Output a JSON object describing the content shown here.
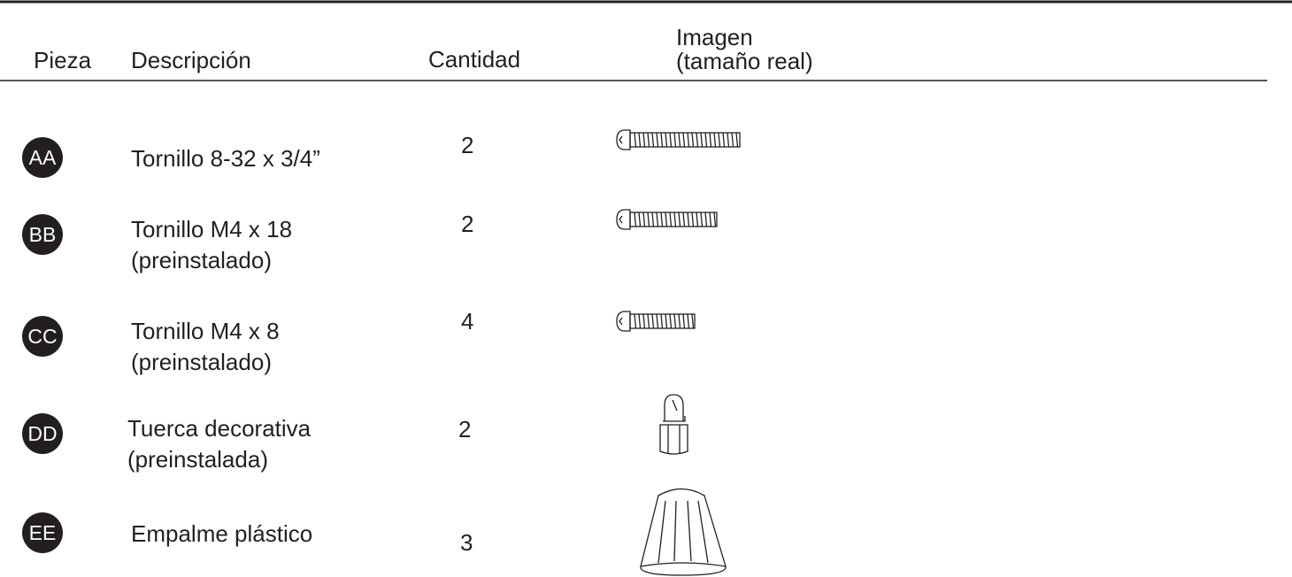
{
  "header": {
    "piece": "Pieza",
    "description": "Descripción",
    "quantity": "Cantidad",
    "image": [
      "Imagen",
      "(tamaño real)"
    ]
  },
  "rows": [
    {
      "piece": "AA",
      "description": [
        "Tornillo 8-32 x 3/4”"
      ],
      "quantity": "2"
    },
    {
      "piece": "BB",
      "description": [
        "Tornillo M4 x 18",
        "(preinstalado)"
      ],
      "quantity": "2"
    },
    {
      "piece": "CC",
      "description": [
        "Tornillo M4 x 8",
        "(preinstalado)"
      ],
      "quantity": "4"
    },
    {
      "piece": "DD",
      "description": [
        "Tuerca decorativa",
        "(preinstalada)"
      ],
      "quantity": "2"
    },
    {
      "piece": "EE",
      "description": [
        "Empalme plástico"
      ],
      "quantity": "3"
    }
  ]
}
